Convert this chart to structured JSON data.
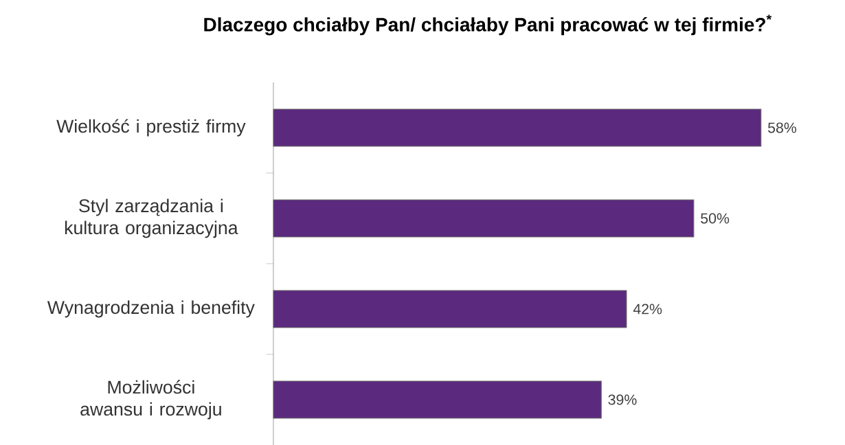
{
  "chart_data": {
    "type": "bar",
    "orientation": "horizontal",
    "title": "Dlaczego chciałby Pan/ chciałaby Pani pracować w tej firmie?$^{*}$",
    "categories": [
      "Wielkość i prestiż firmy",
      "Styl zarządzania i kultura organizacyjna",
      "Wynagrodzenia i benefity",
      "Możliwości awansu i rozwoju"
    ],
    "values": [
      58,
      50,
      42,
      39
    ],
    "value_labels": [
      "58%",
      "50%",
      "42%",
      "39%"
    ],
    "color": "#5b2a7e"
  }
}
